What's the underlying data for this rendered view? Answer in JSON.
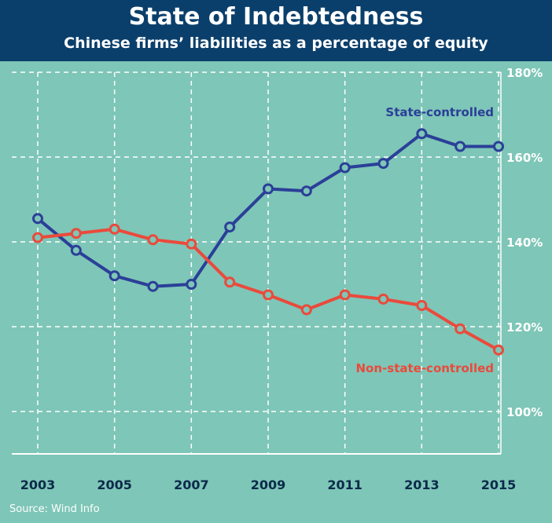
{
  "header": {
    "title": "State of Indebtedness",
    "subtitle": "Chinese firms’ liabilities as a percentage of equity"
  },
  "source": "Source: Wind Info",
  "colors": {
    "background": "#7ec6b7",
    "header_background": "#0b3f6b",
    "state_series": "#2b3f98",
    "nonstate_series": "#ea4a3c",
    "grid": "#ffffff"
  },
  "chart_data": {
    "type": "line",
    "title": "State of Indebtedness",
    "subtitle": "Chinese firms’ liabilities as a percentage of equity",
    "x": [
      2003,
      2004,
      2005,
      2006,
      2007,
      2008,
      2009,
      2010,
      2011,
      2012,
      2013,
      2014,
      2015
    ],
    "x_tick_labels": [
      "2003",
      "2005",
      "2007",
      "2009",
      "2011",
      "2013",
      "2015"
    ],
    "y_tick_labels": [
      "100%",
      "120%",
      "140%",
      "160%",
      "180%"
    ],
    "ylim": [
      90,
      180
    ],
    "y_axis_side": "right",
    "grid": true,
    "series": [
      {
        "name": "State-controlled",
        "color": "#2b3f98",
        "values": [
          145.5,
          138,
          132,
          129.5,
          130,
          143.5,
          152.5,
          152,
          157.5,
          158.5,
          165.5,
          162.5,
          162.5
        ]
      },
      {
        "name": "Non-state-controlled",
        "color": "#ea4a3c",
        "values": [
          141,
          142,
          143,
          140.5,
          139.5,
          130.5,
          127.5,
          124,
          127.5,
          126.5,
          125,
          119.5,
          114.5
        ]
      }
    ]
  }
}
